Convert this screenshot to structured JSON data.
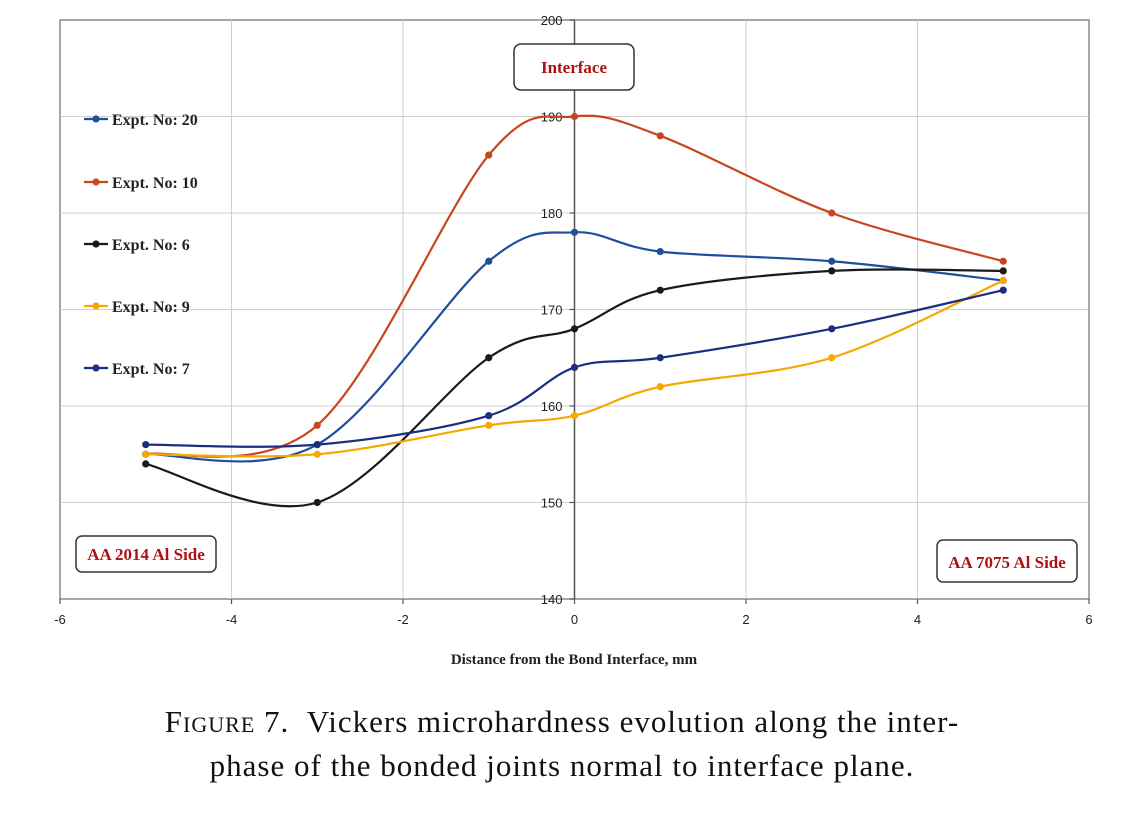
{
  "chart_data": {
    "type": "line",
    "xlabel": "Distance from the Bond Interface, mm",
    "ylabel": "",
    "xlim": [
      -6,
      6
    ],
    "ylim": [
      140,
      200
    ],
    "xticks": [
      -6,
      -4,
      -2,
      0,
      2,
      4,
      6
    ],
    "yticks": [
      140,
      150,
      160,
      170,
      180,
      190,
      200
    ],
    "grid": true,
    "legend_position": "left",
    "series": [
      {
        "name": "Expt. No: 20",
        "color": "#1f4e9c",
        "x": [
          -5,
          -3,
          -1,
          0,
          1,
          3,
          5
        ],
        "y": [
          155,
          156,
          175,
          178,
          176,
          175,
          173
        ]
      },
      {
        "name": "Expt. No: 10",
        "color": "#c8461e",
        "x": [
          -5,
          -3,
          -1,
          0,
          1,
          3,
          5
        ],
        "y": [
          155,
          158,
          186,
          190,
          188,
          180,
          175
        ]
      },
      {
        "name": "Expt. No: 6",
        "color": "#1a1a1a",
        "x": [
          -5,
          -3,
          -1,
          0,
          1,
          3,
          5
        ],
        "y": [
          154,
          150,
          165,
          168,
          172,
          174,
          174
        ]
      },
      {
        "name": "Expt. No: 9",
        "color": "#f5a800",
        "x": [
          -5,
          -3,
          -1,
          0,
          1,
          3,
          5
        ],
        "y": [
          155,
          155,
          158,
          159,
          162,
          165,
          173
        ]
      },
      {
        "name": "Expt. No: 7",
        "color": "#1a2f80",
        "x": [
          -5,
          -3,
          -1,
          0,
          1,
          3,
          5
        ],
        "y": [
          156,
          156,
          159,
          164,
          165,
          168,
          172
        ]
      }
    ],
    "annotations": {
      "interface": "Interface",
      "left_side": "AA 2014 Al Side",
      "right_side": "AA 7075 Al Side"
    }
  },
  "caption": {
    "label": "Figure 7.",
    "text": "Vickers microhardness evolution along the inter-",
    "text2": "phase of the bonded joints normal to interface plane."
  }
}
